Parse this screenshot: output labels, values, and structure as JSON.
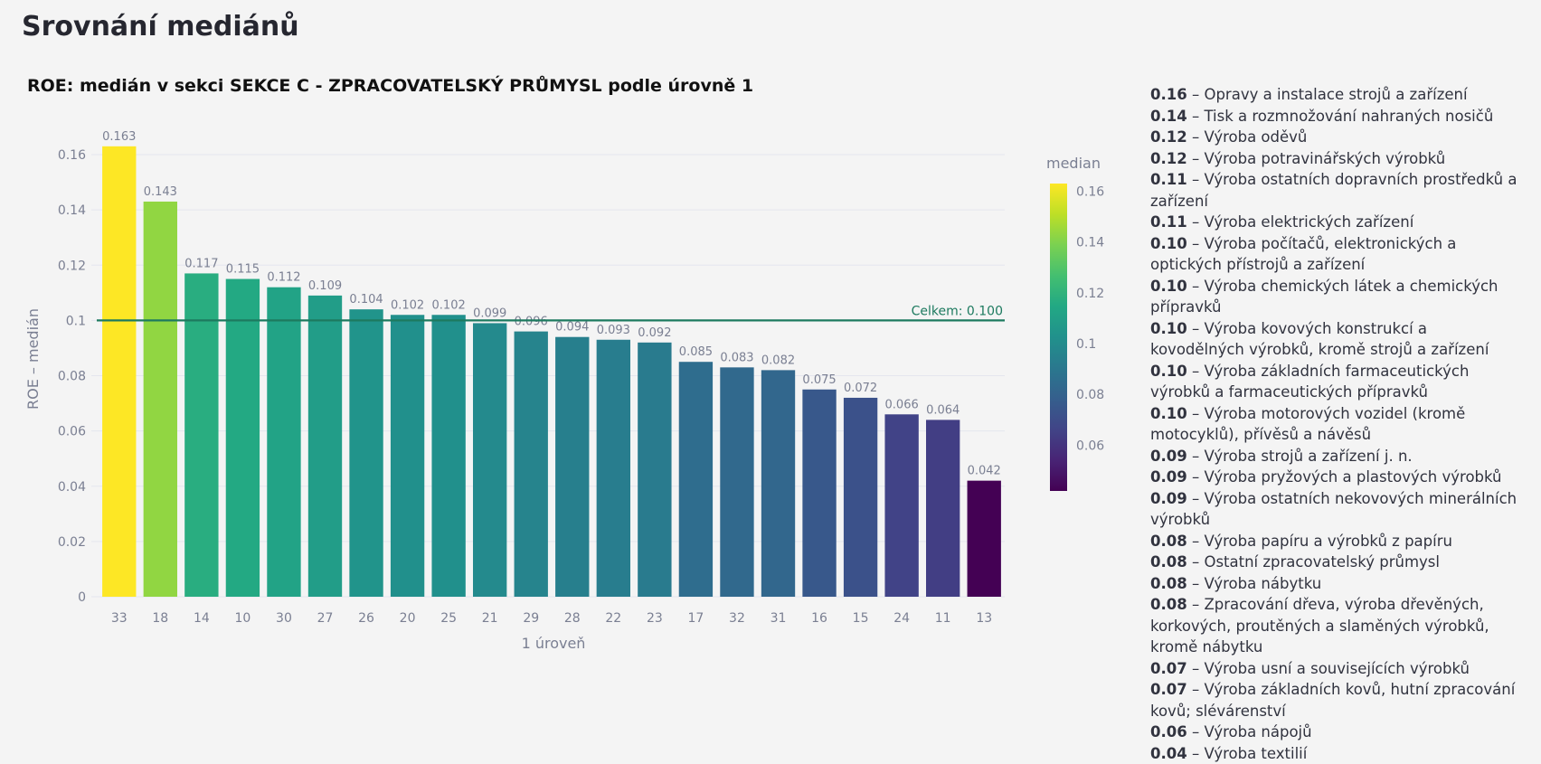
{
  "page": {
    "title": "Srovnání mediánů"
  },
  "chart_data": {
    "type": "bar",
    "title": "ROE: medián v sekci SEKCE C - ZPRACOVATELSKÝ PRŮMYSL podle úrovně 1",
    "xlabel": "1 úroveň",
    "ylabel": "ROE – medián",
    "categories": [
      "33",
      "18",
      "14",
      "10",
      "30",
      "27",
      "26",
      "20",
      "25",
      "21",
      "29",
      "28",
      "22",
      "23",
      "17",
      "32",
      "31",
      "16",
      "15",
      "24",
      "11",
      "13"
    ],
    "values": [
      0.163,
      0.143,
      0.117,
      0.115,
      0.112,
      0.109,
      0.104,
      0.102,
      0.102,
      0.099,
      0.096,
      0.094,
      0.093,
      0.092,
      0.085,
      0.083,
      0.082,
      0.075,
      0.072,
      0.066,
      0.064,
      0.042
    ],
    "data_labels": [
      "0.163",
      "0.143",
      "0.117",
      "0.115",
      "0.112",
      "0.109",
      "0.104",
      "0.102",
      "0.102",
      "0.099",
      "0.096",
      "0.094",
      "0.093",
      "0.092",
      "0.085",
      "0.083",
      "0.082",
      "0.075",
      "0.072",
      "0.066",
      "0.064",
      "0.042"
    ],
    "ylim": [
      0,
      0.173
    ],
    "yticks": [
      0,
      0.02,
      0.04,
      0.06,
      0.08,
      0.1,
      0.12,
      0.14,
      0.16
    ],
    "ytick_labels": [
      "0",
      "0.02",
      "0.04",
      "0.06",
      "0.08",
      "0.1",
      "0.12",
      "0.14",
      "0.16"
    ],
    "grid": true,
    "colorscale": "viridis",
    "colorbar": {
      "title": "median",
      "range": [
        0.042,
        0.163
      ],
      "ticks": [
        0.06,
        0.08,
        0.1,
        0.12,
        0.14,
        0.16
      ],
      "tick_labels": [
        "0.06",
        "0.08",
        "0.1",
        "0.12",
        "0.14",
        "0.16"
      ],
      "placement": "right"
    },
    "reference_line": {
      "value": 0.1,
      "label": "Celkem: 0.100",
      "color": "#1d7a5f"
    }
  },
  "descriptions": [
    {
      "value": "0.16",
      "text": "Opravy a instalace strojů a zařízení"
    },
    {
      "value": "0.14",
      "text": "Tisk a rozmnožování nahraných nosičů"
    },
    {
      "value": "0.12",
      "text": "Výroba oděvů"
    },
    {
      "value": "0.12",
      "text": "Výroba potravinářských výrobků"
    },
    {
      "value": "0.11",
      "text": "Výroba ostatních dopravních prostředků a zařízení"
    },
    {
      "value": "0.11",
      "text": "Výroba elektrických zařízení"
    },
    {
      "value": "0.10",
      "text": "Výroba počítačů, elektronických a optických přístrojů a zařízení"
    },
    {
      "value": "0.10",
      "text": "Výroba chemických látek a chemických přípravků"
    },
    {
      "value": "0.10",
      "text": "Výroba kovových konstrukcí a kovodělných výrobků, kromě strojů a zařízení"
    },
    {
      "value": "0.10",
      "text": "Výroba základních farmaceutických výrobků a farmaceutických přípravků"
    },
    {
      "value": "0.10",
      "text": "Výroba motorových vozidel (kromě motocyklů), přívěsů a návěsů"
    },
    {
      "value": "0.09",
      "text": "Výroba strojů a zařízení j. n."
    },
    {
      "value": "0.09",
      "text": "Výroba pryžových a plastových výrobků"
    },
    {
      "value": "0.09",
      "text": "Výroba ostatních nekovových minerálních výrobků"
    },
    {
      "value": "0.08",
      "text": "Výroba papíru a výrobků z papíru"
    },
    {
      "value": "0.08",
      "text": "Ostatní zpracovatelský průmysl"
    },
    {
      "value": "0.08",
      "text": "Výroba nábytku"
    },
    {
      "value": "0.08",
      "text": "Zpracování dřeva, výroba dřevěných, korkových, proutěných a slaměných výrobků, kromě nábytku"
    },
    {
      "value": "0.07",
      "text": "Výroba usní a souvisejících výrobků"
    },
    {
      "value": "0.07",
      "text": "Výroba základních kovů, hutní zpracování kovů; slévárenství"
    },
    {
      "value": "0.06",
      "text": "Výroba nápojů"
    },
    {
      "value": "0.04",
      "text": "Výroba textilií"
    }
  ]
}
